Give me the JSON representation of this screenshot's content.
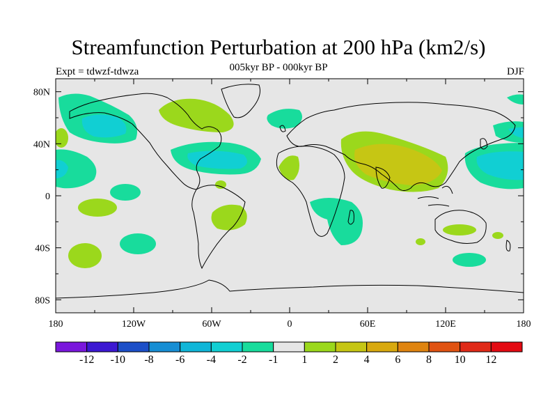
{
  "title": "Streamfunction Perturbation at 200 hPa (km2/s)",
  "subtitle": "005kyr BP - 000kyr BP",
  "experiment": "Expt = tdwzf-tdwza",
  "season": "DJF",
  "axes": {
    "lat_ticks": [
      "80N",
      "40N",
      "0",
      "40S",
      "80S"
    ],
    "lon_ticks": [
      "180",
      "120W",
      "60W",
      "0",
      "60E",
      "120E",
      "180"
    ]
  },
  "colorbar": {
    "labels": [
      "-12",
      "-10",
      "-8",
      "-6",
      "-4",
      "-2",
      "-1",
      "1",
      "2",
      "4",
      "6",
      "8",
      "10",
      "12"
    ],
    "colors": [
      "#7a17dc",
      "#3c18d2",
      "#1c4fc8",
      "#178ed4",
      "#10b6d8",
      "#11cfd3",
      "#18dc9c",
      "#e6e6e6",
      "#9bd81c",
      "#c6c614",
      "#d8a90f",
      "#df8410",
      "#e05312",
      "#e02a18",
      "#e30a12"
    ]
  },
  "palette": {
    "background": "#e6e6e6",
    "level_m2": "#11cfd3",
    "level_m1": "#18dc9c",
    "level_p1": "#9bd81c",
    "level_p2": "#c6c614"
  }
}
